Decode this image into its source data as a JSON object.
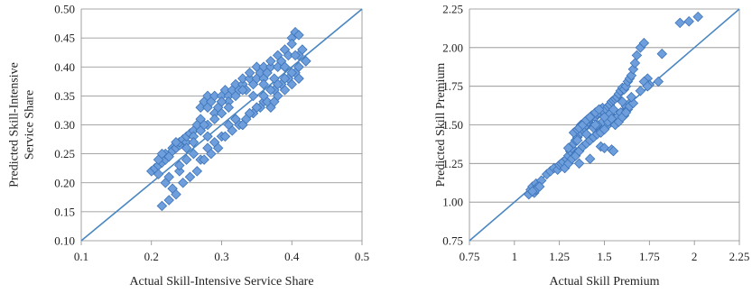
{
  "chart_data": [
    {
      "type": "scatter",
      "title": "",
      "xlabel": "Actual Skill-Intensive Service Share",
      "ylabel": [
        "Predicted Skill-Intensive",
        "Service Share"
      ],
      "xlim": [
        0.1,
        0.5
      ],
      "ylim": [
        0.1,
        0.5
      ],
      "xticks": [
        "0.1",
        "0.2",
        "0.3",
        "0.4",
        "0.5"
      ],
      "yticks": [
        "0.10",
        "0.15",
        "0.20",
        "0.25",
        "0.30",
        "0.35",
        "0.40",
        "0.45",
        "0.50"
      ],
      "grid": "horizontal",
      "reference_line": "45-degree",
      "marker": "diamond",
      "marker_color": "#6e9fdc",
      "line_color": "#4a87c2",
      "x": [
        0.2,
        0.205,
        0.21,
        0.21,
        0.215,
        0.22,
        0.22,
        0.225,
        0.23,
        0.23,
        0.235,
        0.24,
        0.24,
        0.245,
        0.25,
        0.25,
        0.255,
        0.26,
        0.26,
        0.265,
        0.27,
        0.27,
        0.275,
        0.28,
        0.28,
        0.285,
        0.29,
        0.29,
        0.295,
        0.3,
        0.3,
        0.305,
        0.31,
        0.31,
        0.315,
        0.32,
        0.32,
        0.325,
        0.33,
        0.33,
        0.335,
        0.34,
        0.34,
        0.345,
        0.35,
        0.35,
        0.355,
        0.36,
        0.36,
        0.365,
        0.37,
        0.37,
        0.375,
        0.38,
        0.38,
        0.385,
        0.39,
        0.39,
        0.395,
        0.4,
        0.4,
        0.405,
        0.41,
        0.41,
        0.415,
        0.42,
        0.22,
        0.23,
        0.24,
        0.25,
        0.26,
        0.27,
        0.28,
        0.29,
        0.3,
        0.31,
        0.32,
        0.33,
        0.34,
        0.35,
        0.36,
        0.37,
        0.38,
        0.39,
        0.4,
        0.41,
        0.215,
        0.225,
        0.235,
        0.245,
        0.255,
        0.265,
        0.275,
        0.285,
        0.295,
        0.305,
        0.315,
        0.325,
        0.335,
        0.345,
        0.355,
        0.365,
        0.375,
        0.385,
        0.395,
        0.405,
        0.25,
        0.26,
        0.27,
        0.28,
        0.29,
        0.3,
        0.31,
        0.32,
        0.33,
        0.34,
        0.35,
        0.36,
        0.37,
        0.38,
        0.39,
        0.4,
        0.41,
        0.42,
        0.21,
        0.215,
        0.225,
        0.235,
        0.24,
        0.27,
        0.275,
        0.28,
        0.3,
        0.33,
        0.345,
        0.36,
        0.375,
        0.39,
        0.405,
        0.41
      ],
      "y": [
        0.22,
        0.225,
        0.23,
        0.215,
        0.235,
        0.24,
        0.25,
        0.245,
        0.26,
        0.255,
        0.26,
        0.265,
        0.27,
        0.275,
        0.27,
        0.28,
        0.285,
        0.29,
        0.28,
        0.3,
        0.31,
        0.33,
        0.34,
        0.35,
        0.33,
        0.34,
        0.35,
        0.32,
        0.33,
        0.34,
        0.35,
        0.36,
        0.35,
        0.34,
        0.36,
        0.37,
        0.35,
        0.36,
        0.37,
        0.38,
        0.36,
        0.38,
        0.39,
        0.37,
        0.38,
        0.4,
        0.39,
        0.38,
        0.4,
        0.39,
        0.4,
        0.41,
        0.38,
        0.4,
        0.42,
        0.41,
        0.4,
        0.43,
        0.42,
        0.45,
        0.44,
        0.46,
        0.455,
        0.42,
        0.43,
        0.41,
        0.2,
        0.19,
        0.22,
        0.24,
        0.25,
        0.24,
        0.26,
        0.27,
        0.28,
        0.3,
        0.31,
        0.3,
        0.32,
        0.33,
        0.34,
        0.33,
        0.35,
        0.36,
        0.37,
        0.38,
        0.16,
        0.17,
        0.18,
        0.2,
        0.21,
        0.22,
        0.24,
        0.25,
        0.26,
        0.28,
        0.29,
        0.3,
        0.31,
        0.32,
        0.33,
        0.34,
        0.36,
        0.37,
        0.38,
        0.39,
        0.26,
        0.27,
        0.29,
        0.3,
        0.31,
        0.32,
        0.33,
        0.31,
        0.3,
        0.32,
        0.33,
        0.35,
        0.36,
        0.37,
        0.38,
        0.39,
        0.4,
        0.41,
        0.24,
        0.25,
        0.21,
        0.27,
        0.23,
        0.29,
        0.3,
        0.28,
        0.34,
        0.36,
        0.35,
        0.37,
        0.34,
        0.4,
        0.42,
        0.38
      ]
    },
    {
      "type": "scatter",
      "title": "",
      "xlabel": "Actual Skill Premium",
      "ylabel": [
        "Predicted Skill Premium"
      ],
      "xlim": [
        0.75,
        2.25
      ],
      "ylim": [
        0.75,
        2.25
      ],
      "xticks": [
        "0.75",
        "1",
        "1.25",
        "1.5",
        "1.75",
        "2",
        "2.25"
      ],
      "yticks": [
        "0.75",
        "1.00",
        "1.25",
        "1.50",
        "1.75",
        "2.00",
        "2.25"
      ],
      "grid": "horizontal",
      "reference_line": "45-degree",
      "marker": "diamond",
      "marker_color": "#6e9fdc",
      "line_color": "#4a87c2",
      "x": [
        1.08,
        1.09,
        1.1,
        1.11,
        1.12,
        1.13,
        1.15,
        1.18,
        1.2,
        1.22,
        1.24,
        1.25,
        1.26,
        1.27,
        1.28,
        1.29,
        1.3,
        1.31,
        1.32,
        1.33,
        1.34,
        1.35,
        1.36,
        1.37,
        1.38,
        1.39,
        1.4,
        1.41,
        1.42,
        1.43,
        1.44,
        1.45,
        1.46,
        1.47,
        1.48,
        1.49,
        1.5,
        1.51,
        1.52,
        1.53,
        1.54,
        1.55,
        1.56,
        1.57,
        1.58,
        1.59,
        1.6,
        1.61,
        1.62,
        1.63,
        1.64,
        1.65,
        1.66,
        1.67,
        1.68,
        1.7,
        1.72,
        1.74,
        1.3,
        1.32,
        1.34,
        1.36,
        1.38,
        1.4,
        1.42,
        1.44,
        1.46,
        1.48,
        1.5,
        1.52,
        1.54,
        1.56,
        1.58,
        1.6,
        1.62,
        1.64,
        1.33,
        1.35,
        1.37,
        1.39,
        1.41,
        1.43,
        1.45,
        1.47,
        1.49,
        1.51,
        1.53,
        1.55,
        1.57,
        1.59,
        1.61,
        1.63,
        1.36,
        1.38,
        1.4,
        1.42,
        1.44,
        1.46,
        1.48,
        1.5,
        1.52,
        1.54,
        1.56,
        1.58,
        1.6,
        1.62,
        1.64,
        1.66,
        1.3,
        1.35,
        1.4,
        1.45,
        1.5,
        1.55,
        1.6,
        1.65,
        1.7,
        1.75,
        1.8,
        1.92,
        1.97,
        2.02,
        1.72,
        1.74,
        1.82,
        1.48,
        1.5,
        1.54,
        1.55,
        1.36,
        1.42,
        1.12,
        1.1,
        1.14
      ],
      "y": [
        1.05,
        1.08,
        1.1,
        1.06,
        1.12,
        1.1,
        1.14,
        1.18,
        1.2,
        1.22,
        1.21,
        1.24,
        1.25,
        1.26,
        1.22,
        1.28,
        1.3,
        1.33,
        1.35,
        1.38,
        1.4,
        1.42,
        1.44,
        1.45,
        1.47,
        1.48,
        1.5,
        1.52,
        1.54,
        1.55,
        1.56,
        1.55,
        1.57,
        1.58,
        1.6,
        1.61,
        1.58,
        1.6,
        1.62,
        1.63,
        1.65,
        1.66,
        1.67,
        1.68,
        1.7,
        1.72,
        1.74,
        1.73,
        1.75,
        1.78,
        1.8,
        1.82,
        1.86,
        1.9,
        1.95,
        2.0,
        2.03,
        1.8,
        1.25,
        1.28,
        1.3,
        1.33,
        1.36,
        1.38,
        1.4,
        1.42,
        1.44,
        1.46,
        1.48,
        1.5,
        1.52,
        1.54,
        1.56,
        1.58,
        1.62,
        1.64,
        1.45,
        1.47,
        1.5,
        1.52,
        1.54,
        1.56,
        1.58,
        1.6,
        1.52,
        1.55,
        1.57,
        1.53,
        1.55,
        1.58,
        1.56,
        1.6,
        1.48,
        1.5,
        1.53,
        1.55,
        1.48,
        1.5,
        1.45,
        1.47,
        1.52,
        1.54,
        1.5,
        1.52,
        1.55,
        1.58,
        1.62,
        1.64,
        1.35,
        1.4,
        1.44,
        1.5,
        1.55,
        1.6,
        1.65,
        1.68,
        1.72,
        1.76,
        1.78,
        2.16,
        2.17,
        2.2,
        1.78,
        1.75,
        1.96,
        1.36,
        1.35,
        1.34,
        1.33,
        1.25,
        1.28,
        1.08,
        1.07,
        1.1
      ]
    }
  ]
}
